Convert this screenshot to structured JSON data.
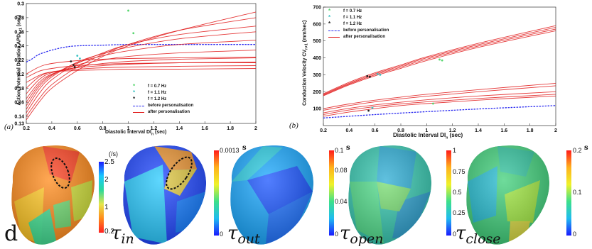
{
  "panel_a": {
    "label": "(a)",
    "xlabel": "Diastolic Interval DI",
    "xlabel_sub": "n",
    "xlabel_unit": "(sec)",
    "ylabel": "Action Potential Duration APD",
    "ylabel_sub": "n+1",
    "ylabel_unit": "(sec)",
    "legend": [
      {
        "label": "f = 0.7 Hz",
        "kind": "dot",
        "color": "#56d66e"
      },
      {
        "label": "f = 1.1 Hz",
        "kind": "dot",
        "color": "#3bc4c4"
      },
      {
        "label": "f = 1.2 Hz",
        "kind": "dot",
        "color": "#202020"
      },
      {
        "label": "before personalisation",
        "kind": "dashed",
        "color": "#2a2af0"
      },
      {
        "label": "after personalisation",
        "kind": "solid",
        "color": "#e01818"
      }
    ]
  },
  "panel_b": {
    "label": "(b)",
    "xlabel": "Diastolic Interval DI",
    "xlabel_sub": "n",
    "xlabel_unit": "(sec)",
    "ylabel": "Conduction Velocity CV",
    "ylabel_sub": "n+1",
    "ylabel_unit": "(mm/sec)",
    "legend": [
      {
        "label": "f = 0.7 Hz",
        "kind": "dot",
        "color": "#56d66e"
      },
      {
        "label": "f = 1.1 Hz",
        "kind": "dot",
        "color": "#3bc4c4"
      },
      {
        "label": "f = 1.2 Hz",
        "kind": "dot",
        "color": "#202020"
      },
      {
        "label": "before personalisation",
        "kind": "dashed",
        "color": "#2a2af0"
      },
      {
        "label": "after personalisation",
        "kind": "solid",
        "color": "#e01818"
      }
    ]
  },
  "chart_data": [
    {
      "type": "line",
      "panel": "a",
      "xlabel": "Diastolic Interval DI_n (sec)",
      "ylabel": "Action Potential Duration APD_n+1 (sec)",
      "xlim": [
        0.2,
        2
      ],
      "ylim": [
        0.13,
        0.3
      ],
      "xticks": [
        0.2,
        0.4,
        0.6,
        0.8,
        1,
        1.2,
        1.4,
        1.6,
        1.8,
        2
      ],
      "yticks": [
        0.13,
        0.14,
        0.16,
        0.18,
        0.2,
        0.22,
        0.24,
        0.26,
        0.28,
        0.3
      ],
      "xtick_labels": [
        "0.2",
        "0.4",
        "0.6",
        "0.8",
        "1",
        "1.2",
        "1.4",
        "1.6",
        "1.8",
        "2"
      ],
      "ytick_labels": [
        "0.13",
        "0.14",
        "0.16",
        "0.18",
        "0.2",
        "0.22",
        "0.24",
        "0.26",
        "0.28",
        "0.3"
      ],
      "grid": false,
      "legend_position": "center-right",
      "series": [
        {
          "name": "before personalisation",
          "style": "dashed",
          "color": "#2a2af0",
          "x": [
            0.2,
            0.25,
            0.3,
            0.4,
            0.5,
            0.6,
            0.8,
            1.0,
            1.2,
            1.5,
            2.0
          ],
          "y": [
            0.217,
            0.222,
            0.228,
            0.234,
            0.238,
            0.24,
            0.241,
            0.242,
            0.242,
            0.242,
            0.242
          ]
        },
        {
          "name": "after personalisation",
          "style": "solid",
          "color": "#e01818",
          "curves": [
            {
              "x": [
                0.2,
                0.3,
                0.4,
                0.6,
                0.8,
                1.0,
                1.4,
                2.0
              ],
              "y": [
                0.135,
                0.16,
                0.18,
                0.205,
                0.225,
                0.24,
                0.262,
                0.288
              ]
            },
            {
              "x": [
                0.2,
                0.3,
                0.4,
                0.6,
                0.8,
                1.0,
                1.4,
                2.0
              ],
              "y": [
                0.14,
                0.165,
                0.185,
                0.21,
                0.228,
                0.242,
                0.262,
                0.28
              ]
            },
            {
              "x": [
                0.2,
                0.3,
                0.4,
                0.6,
                0.8,
                1.0,
                1.4,
                2.0
              ],
              "y": [
                0.145,
                0.172,
                0.192,
                0.215,
                0.23,
                0.242,
                0.256,
                0.268
              ]
            },
            {
              "x": [
                0.2,
                0.3,
                0.4,
                0.6,
                0.8,
                1.0,
                1.4,
                2.0
              ],
              "y": [
                0.15,
                0.178,
                0.196,
                0.217,
                0.229,
                0.238,
                0.25,
                0.26
              ]
            },
            {
              "x": [
                0.2,
                0.3,
                0.4,
                0.6,
                0.8,
                1.0,
                1.4,
                2.0
              ],
              "y": [
                0.155,
                0.182,
                0.198,
                0.216,
                0.226,
                0.233,
                0.242,
                0.248
              ]
            },
            {
              "x": [
                0.2,
                0.3,
                0.4,
                0.6,
                0.8,
                1.0,
                1.4,
                2.0
              ],
              "y": [
                0.16,
                0.185,
                0.199,
                0.213,
                0.22,
                0.225,
                0.23,
                0.234
              ]
            },
            {
              "x": [
                0.2,
                0.3,
                0.4,
                0.6,
                0.8,
                1.0,
                1.4,
                2.0
              ],
              "y": [
                0.165,
                0.188,
                0.2,
                0.21,
                0.215,
                0.218,
                0.221,
                0.223
              ]
            },
            {
              "x": [
                0.2,
                0.3,
                0.4,
                0.6,
                0.8,
                1.0,
                1.4,
                2.0
              ],
              "y": [
                0.172,
                0.192,
                0.202,
                0.209,
                0.212,
                0.214,
                0.216,
                0.217
              ]
            },
            {
              "x": [
                0.2,
                0.3,
                0.4,
                0.6,
                0.8,
                1.0,
                1.4,
                2.0
              ],
              "y": [
                0.18,
                0.196,
                0.203,
                0.207,
                0.209,
                0.21,
                0.211,
                0.212
              ]
            },
            {
              "x": [
                0.2,
                0.3,
                0.4,
                0.6,
                0.8,
                1.0,
                1.4,
                2.0
              ],
              "y": [
                0.188,
                0.198,
                0.203,
                0.205,
                0.206,
                0.207,
                0.207,
                0.208
              ]
            },
            {
              "x": [
                0.2,
                0.3,
                0.4,
                0.6,
                0.8,
                1.0,
                1.4,
                2.0
              ],
              "y": [
                0.195,
                0.204,
                0.208,
                0.212,
                0.214,
                0.215,
                0.216,
                0.216
              ]
            },
            {
              "x": [
                0.2,
                0.3,
                0.4,
                0.6,
                0.8,
                1.0,
                1.4,
                2.0
              ],
              "y": [
                0.2,
                0.21,
                0.215,
                0.219,
                0.221,
                0.222,
                0.223,
                0.224
              ]
            }
          ]
        },
        {
          "name": "f = 0.7 Hz",
          "style": "dot",
          "color": "#56d66e",
          "x": [
            1.0,
            1.04
          ],
          "y": [
            0.29,
            0.258
          ]
        },
        {
          "name": "f = 1.1 Hz",
          "style": "dot",
          "color": "#3bc4c4",
          "x": [
            0.6,
            0.62
          ],
          "y": [
            0.226,
            0.222
          ]
        },
        {
          "name": "f = 1.2 Hz",
          "style": "dot",
          "color": "#202020",
          "x": [
            0.55,
            0.57,
            0.58
          ],
          "y": [
            0.218,
            0.213,
            0.21
          ]
        }
      ]
    },
    {
      "type": "line",
      "panel": "b",
      "xlabel": "Diastolic Interval DI_n (sec)",
      "ylabel": "Conduction Velocity CV_n+1 (mm/sec)",
      "xlim": [
        0.2,
        2
      ],
      "ylim": [
        0,
        700
      ],
      "xticks": [
        0.2,
        0.4,
        0.6,
        0.8,
        1,
        1.2,
        1.4,
        1.6,
        1.8,
        2
      ],
      "yticks": [
        100,
        200,
        300,
        400,
        500,
        600,
        700
      ],
      "xtick_labels": [
        "0.2",
        "0.4",
        "0.6",
        "0.8",
        "1",
        "1.2",
        "1.4",
        "1.6",
        "1.8",
        "2"
      ],
      "ytick_labels": [
        "100",
        "200",
        "300",
        "400",
        "500",
        "600",
        "700"
      ],
      "grid": false,
      "legend_position": "top-left",
      "series": [
        {
          "name": "before personalisation",
          "style": "dashed",
          "color": "#2a2af0",
          "x": [
            0.2,
            0.6,
            1.0,
            1.4,
            2.0
          ],
          "y": [
            45,
            65,
            82,
            98,
            118
          ]
        },
        {
          "name": "after personalisation",
          "style": "solid",
          "color": "#e01818",
          "curves": [
            {
              "x": [
                0.2,
                0.4,
                0.6,
                0.8,
                1.0,
                1.4,
                2.0
              ],
              "y": [
                180,
                245,
                300,
                345,
                392,
                470,
                570
              ]
            },
            {
              "x": [
                0.2,
                0.4,
                0.6,
                0.8,
                1.0,
                1.4,
                2.0
              ],
              "y": [
                184,
                250,
                306,
                352,
                400,
                478,
                580
              ]
            },
            {
              "x": [
                0.2,
                0.4,
                0.6,
                0.8,
                1.0,
                1.4,
                2.0
              ],
              "y": [
                188,
                256,
                312,
                358,
                406,
                486,
                590
              ]
            },
            {
              "x": [
                0.2,
                0.4,
                0.6,
                0.8,
                1.0,
                1.4,
                2.0
              ],
              "y": [
                176,
                240,
                294,
                338,
                384,
                462,
                560
              ]
            },
            {
              "x": [
                0.2,
                0.4,
                0.6,
                0.8,
                1.0,
                1.4,
                2.0
              ],
              "y": [
                55,
                80,
                100,
                118,
                130,
                150,
                175
              ]
            },
            {
              "x": [
                0.2,
                0.4,
                0.6,
                0.8,
                1.0,
                1.4,
                2.0
              ],
              "y": [
                65,
                92,
                112,
                128,
                140,
                160,
                185
              ]
            },
            {
              "x": [
                0.2,
                0.4,
                0.6,
                0.8,
                1.0,
                1.4,
                2.0
              ],
              "y": [
                75,
                102,
                122,
                138,
                152,
                175,
                200
              ]
            },
            {
              "x": [
                0.2,
                0.4,
                0.6,
                0.8,
                1.0,
                1.4,
                2.0
              ],
              "y": [
                90,
                118,
                140,
                158,
                173,
                200,
                235
              ]
            },
            {
              "x": [
                0.2,
                0.4,
                0.6,
                0.8,
                1.0,
                1.4,
                2.0
              ],
              "y": [
                100,
                128,
                150,
                168,
                185,
                212,
                250
              ]
            }
          ]
        },
        {
          "name": "f = 0.7 Hz",
          "style": "dot",
          "color": "#56d66e",
          "x": [
            1.1,
            1.12,
            1.05
          ],
          "y": [
            390,
            385,
            130
          ]
        },
        {
          "name": "f = 1.1 Hz",
          "style": "dot",
          "color": "#3bc4c4",
          "x": [
            0.62,
            0.64,
            0.58
          ],
          "y": [
            305,
            300,
            105
          ]
        },
        {
          "name": "f = 1.2 Hz",
          "style": "dot",
          "color": "#202020",
          "x": [
            0.54,
            0.56,
            0.55
          ],
          "y": [
            292,
            288,
            88
          ]
        }
      ]
    }
  ],
  "maps": [
    {
      "id": "d",
      "label_main": "d",
      "label_sub": "",
      "colorbar": {
        "unit": "(/s)",
        "unit_style": "plain",
        "ticks": [
          "2.5",
          "2",
          "1",
          "0.2"
        ],
        "stops": [
          "#1a1aff",
          "#19c8ff",
          "#2bd99a",
          "#e6e64a",
          "#ff8a1a",
          "#ff2222"
        ],
        "reverse": true
      }
    },
    {
      "id": "tau_in",
      "label_main": "τ",
      "label_sub": "in",
      "colorbar": {
        "unit": "s",
        "unit_style": "bold",
        "ticks": [
          "0.0013",
          "0"
        ],
        "stops": [
          "#ff1b1b",
          "#ffb21c",
          "#eff22a",
          "#3de08a",
          "#1fbcf0",
          "#1a1aff"
        ],
        "reverse": false
      }
    },
    {
      "id": "tau_out",
      "label_main": "τ",
      "label_sub": "out",
      "colorbar": {
        "unit": "s",
        "unit_style": "bold",
        "ticks": [
          "0.1",
          "0.08",
          "0.04",
          "0"
        ],
        "stops": [
          "#ff1b1b",
          "#ffb21c",
          "#eff22a",
          "#3de08a",
          "#1fbcf0",
          "#1a1aff"
        ],
        "reverse": false
      }
    },
    {
      "id": "tau_open",
      "label_main": "τ",
      "label_sub": "open",
      "colorbar": {
        "unit": "",
        "unit_style": "bold",
        "ticks": [
          "1",
          "0.75",
          "0.5",
          "0.25",
          "0"
        ],
        "stops": [
          "#ff1b1b",
          "#ffb21c",
          "#eff22a",
          "#3de08a",
          "#1fbcf0",
          "#1a1aff"
        ],
        "reverse": false
      }
    },
    {
      "id": "tau_close",
      "label_main": "τ",
      "label_sub": "close",
      "colorbar": {
        "unit": "s",
        "unit_style": "bold",
        "ticks": [
          "0.2",
          "0.1",
          "0"
        ],
        "stops": [
          "#ff1b1b",
          "#ffb21c",
          "#eff22a",
          "#3de08a",
          "#1fbcf0",
          "#1a1aff"
        ],
        "reverse": false
      }
    }
  ]
}
